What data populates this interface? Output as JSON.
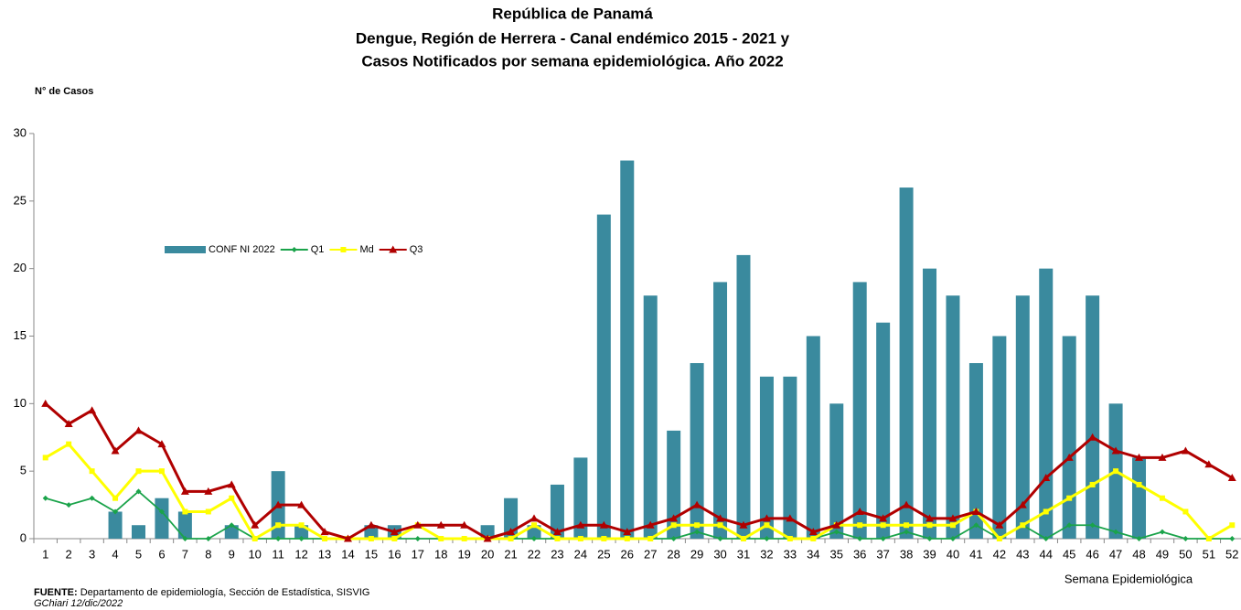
{
  "chart_data": {
    "type": "bar",
    "title": [
      "República de Panamá",
      "Dengue, Región de Herrera - Canal endémico 2015 - 2021 y",
      "Casos Notificados por semana epidemiológica. Año 2022"
    ],
    "y_label": "N° de Casos",
    "x_label": "Semana Epidemiológica",
    "categories": [
      "1",
      "2",
      "3",
      "4",
      "5",
      "6",
      "7",
      "8",
      "9",
      "10",
      "11",
      "12",
      "13",
      "14",
      "15",
      "16",
      "17",
      "18",
      "19",
      "20",
      "21",
      "22",
      "23",
      "24",
      "25",
      "26",
      "27",
      "28",
      "29",
      "30",
      "31",
      "32",
      "33",
      "34",
      "35",
      "36",
      "37",
      "38",
      "39",
      "40",
      "41",
      "42",
      "43",
      "44",
      "45",
      "46",
      "47",
      "48",
      "49",
      "50",
      "51",
      "52"
    ],
    "ylim": [
      0,
      30
    ],
    "yticks": [
      0,
      5,
      10,
      15,
      20,
      25,
      30
    ],
    "legend": "upper left",
    "series": [
      {
        "name": "CONF NI 2022",
        "type": "bar",
        "color": "#3a8a9e",
        "values": [
          0,
          0,
          0,
          2,
          1,
          3,
          2,
          0,
          1,
          0,
          5,
          1,
          0,
          0,
          1,
          1,
          0,
          0,
          0,
          1,
          3,
          1,
          4,
          6,
          24,
          28,
          18,
          8,
          13,
          19,
          21,
          12,
          12,
          15,
          10,
          19,
          16,
          26,
          20,
          18,
          13,
          15,
          18,
          20,
          15,
          18,
          10,
          6,
          0,
          0,
          0,
          0
        ]
      },
      {
        "name": "Q1",
        "type": "line",
        "marker": "diamond",
        "color": "#1aa34a",
        "values": [
          3,
          2.5,
          3,
          2,
          3.5,
          2,
          0,
          0,
          1,
          0,
          0,
          0,
          0,
          0,
          0,
          0,
          0,
          0,
          0,
          0,
          0,
          0,
          0,
          0,
          0,
          0,
          0,
          0,
          0.5,
          0,
          0,
          0,
          0,
          0,
          0.5,
          0,
          0,
          0.5,
          0,
          0,
          1,
          0,
          1,
          0,
          1,
          1,
          0.5,
          0,
          0.5,
          0,
          0,
          0
        ]
      },
      {
        "name": "Md",
        "type": "line",
        "marker": "square",
        "color": "#ffff00",
        "values": [
          6,
          7,
          5,
          3,
          5,
          5,
          2,
          2,
          3,
          0,
          1,
          1,
          0,
          0,
          0,
          0,
          1,
          0,
          0,
          0,
          0,
          1,
          0,
          0,
          0,
          0,
          0,
          1,
          1,
          1,
          0,
          1,
          0,
          0,
          1,
          1,
          1,
          1,
          1,
          1,
          2,
          0,
          1,
          2,
          3,
          4,
          5,
          4,
          3,
          2,
          0,
          1
        ]
      },
      {
        "name": "Q3",
        "type": "line",
        "marker": "triangle",
        "color": "#b00000",
        "values": [
          10,
          8.5,
          9.5,
          6.5,
          8,
          7,
          3.5,
          3.5,
          4,
          1,
          2.5,
          2.5,
          0.5,
          0,
          1,
          0.5,
          1,
          1,
          1,
          0,
          0.5,
          1.5,
          0.5,
          1,
          1,
          0.5,
          1,
          1.5,
          2.5,
          1.5,
          1,
          1.5,
          1.5,
          0.5,
          1,
          2,
          1.5,
          2.5,
          1.5,
          1.5,
          2,
          1,
          2.5,
          4.5,
          6,
          7.5,
          6.5,
          6,
          6,
          6.5,
          5.5,
          4.5
        ]
      }
    ],
    "footer": {
      "source_label": "FUENTE:",
      "source": "Departamento de epidemiología, Sección de Estadística, SISVIG",
      "credit": "GChiari 12/dic/2022"
    }
  }
}
